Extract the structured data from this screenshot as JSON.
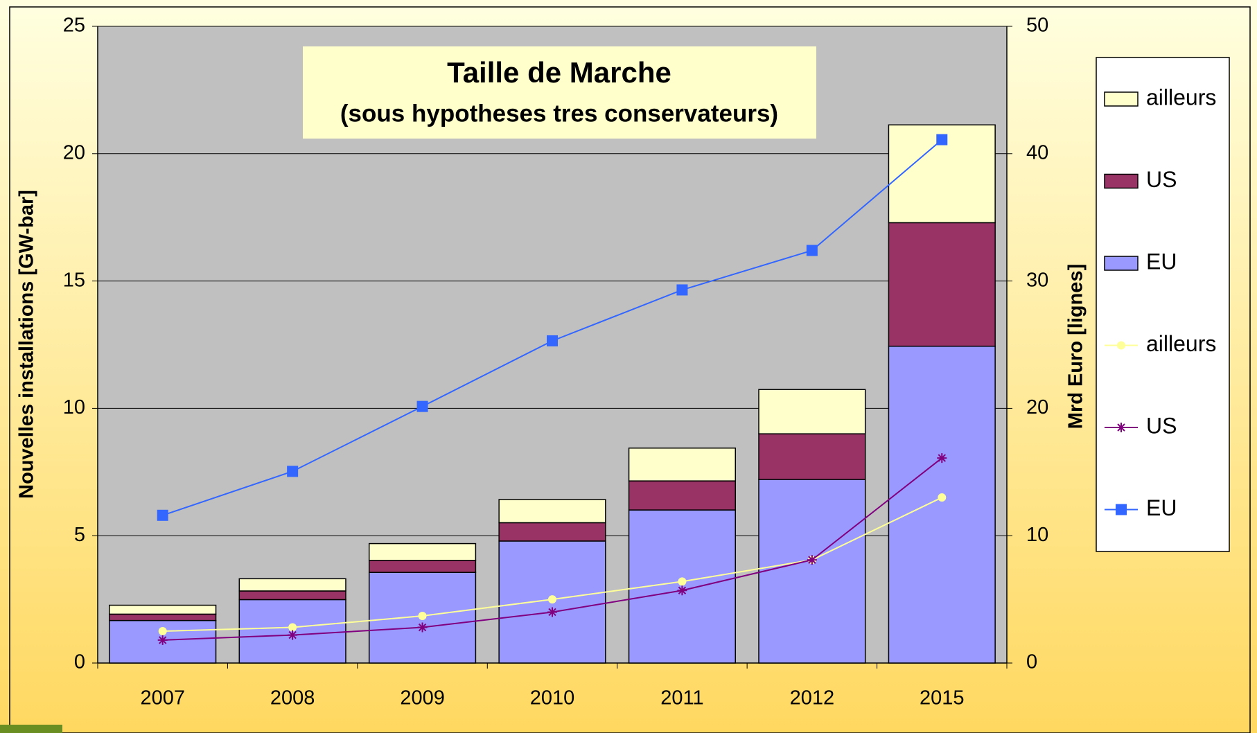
{
  "chart_data": {
    "type": "bar",
    "title": "Taille de Marche",
    "subtitle": "(sous hypotheses tres conservateurs)",
    "categories": [
      "2007",
      "2008",
      "2009",
      "2010",
      "2011",
      "2012",
      "2015"
    ],
    "y_label": "Nouvelles installations [GW-bar]",
    "y2_label": "Mrd Euro [lignes]",
    "ylim": [
      0,
      25
    ],
    "yticks": [
      0,
      5,
      10,
      15,
      20,
      25
    ],
    "y2lim": [
      0,
      50
    ],
    "y2ticks": [
      0,
      10,
      20,
      30,
      40,
      50
    ],
    "grid": true,
    "stacked": true,
    "legend": "right",
    "series": [
      {
        "name": "EU",
        "type": "bar",
        "color": "#9999ff",
        "values": [
          1.67,
          2.49,
          3.56,
          4.79,
          6.01,
          7.21,
          12.44
        ]
      },
      {
        "name": "US",
        "type": "bar",
        "color": "#993366",
        "values": [
          0.25,
          0.34,
          0.47,
          0.72,
          1.14,
          1.79,
          4.85
        ]
      },
      {
        "name": "ailleurs",
        "type": "bar",
        "color": "#ffffcc",
        "values": [
          0.35,
          0.48,
          0.66,
          0.91,
          1.29,
          1.74,
          3.84
        ]
      },
      {
        "name": "EU",
        "type": "line",
        "axis": "y2",
        "marker": "square",
        "color": "#3366ff",
        "values": [
          11.6,
          15.05,
          20.15,
          25.3,
          29.3,
          32.4,
          41.1
        ]
      },
      {
        "name": "US",
        "type": "line",
        "axis": "y2",
        "marker": "star",
        "color": "#800080",
        "values": [
          1.8,
          2.2,
          2.8,
          4.0,
          5.7,
          8.1,
          16.1
        ]
      },
      {
        "name": "ailleurs",
        "type": "line",
        "axis": "y2",
        "marker": "circle",
        "color": "#ffff99",
        "values": [
          2.5,
          2.8,
          3.7,
          5.0,
          6.4,
          8.1,
          13.0
        ]
      }
    ]
  }
}
